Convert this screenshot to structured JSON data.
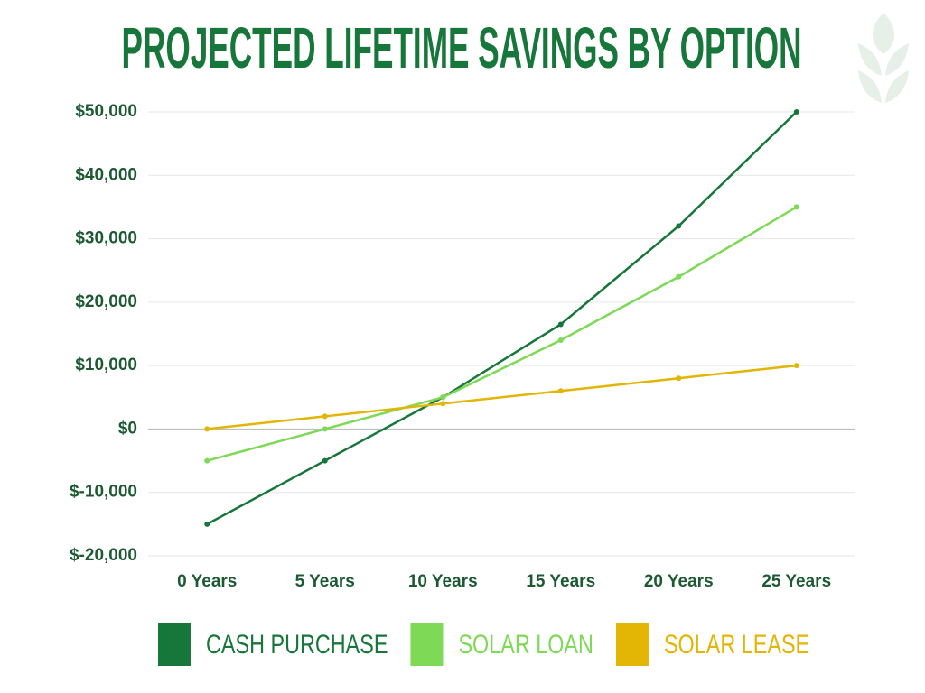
{
  "chart_data": {
    "type": "line",
    "title": "PROJECTED LIFETIME SAVINGS BY OPTION",
    "categories": [
      "0 Years",
      "5 Years",
      "10 Years",
      "15 Years",
      "20 Years",
      "25 Years"
    ],
    "series": [
      {
        "name": "CASH PURCHASE",
        "color": "#17773a",
        "values": [
          -15000,
          -5000,
          5000,
          16500,
          32000,
          50000
        ]
      },
      {
        "name": "SOLAR LOAN",
        "color": "#7ed957",
        "values": [
          -5000,
          0,
          5000,
          14000,
          24000,
          35000
        ]
      },
      {
        "name": "SOLAR LEASE",
        "color": "#e3b505",
        "values": [
          0,
          2000,
          4000,
          6000,
          8000,
          10000
        ]
      }
    ],
    "ylim": [
      -20000,
      50000
    ],
    "yticks": [
      {
        "value": -20000,
        "label": "$-20,000"
      },
      {
        "value": -10000,
        "label": "$-10,000"
      },
      {
        "value": 0,
        "label": "$0"
      },
      {
        "value": 10000,
        "label": "$10,000"
      },
      {
        "value": 20000,
        "label": "$20,000"
      },
      {
        "value": 30000,
        "label": "$30,000"
      },
      {
        "value": 40000,
        "label": "$40,000"
      },
      {
        "value": 50000,
        "label": "$50,000"
      }
    ],
    "grid": true,
    "legend": "bottom"
  }
}
